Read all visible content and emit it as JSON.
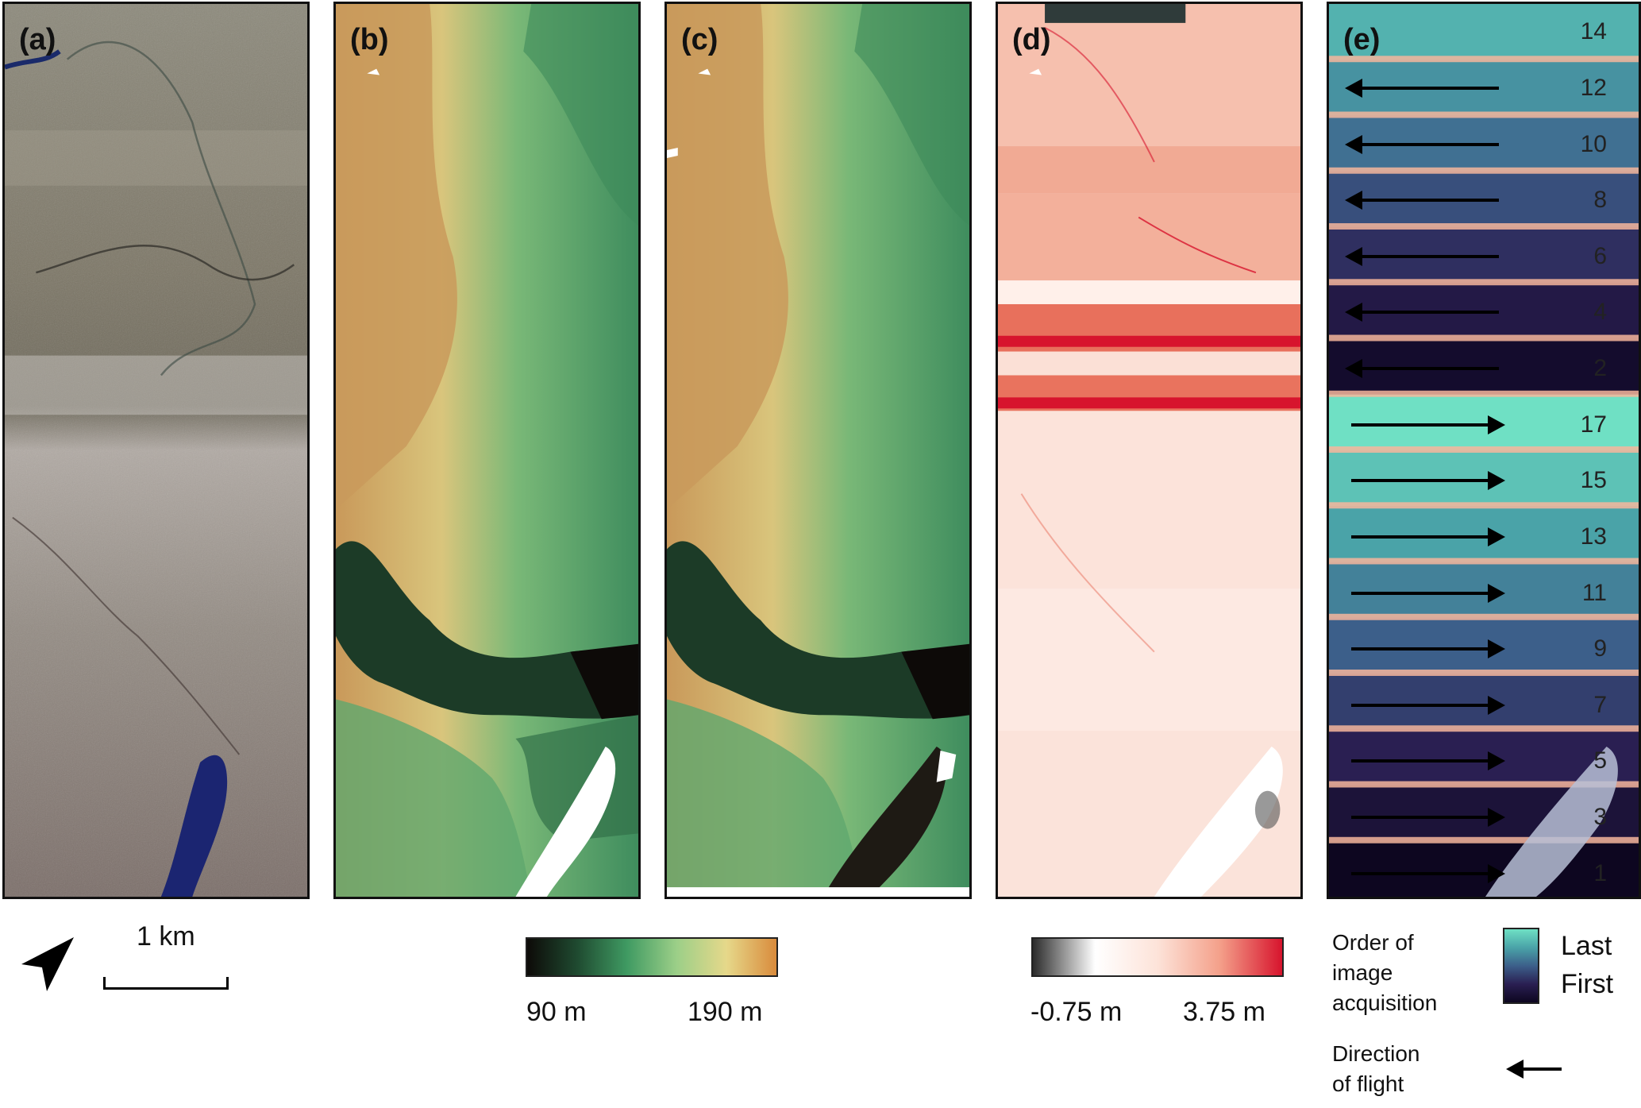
{
  "panels": {
    "a": {
      "label": "(a)"
    },
    "b": {
      "label": "(b)"
    },
    "c": {
      "label": "(c)"
    },
    "d": {
      "label": "(d)"
    },
    "e": {
      "label": "(e)"
    }
  },
  "strips": [
    {
      "num": "14",
      "arrow": "none"
    },
    {
      "num": "12",
      "arrow": "left"
    },
    {
      "num": "10",
      "arrow": "left"
    },
    {
      "num": "8",
      "arrow": "left"
    },
    {
      "num": "6",
      "arrow": "left"
    },
    {
      "num": "4",
      "arrow": "left"
    },
    {
      "num": "2",
      "arrow": "left"
    },
    {
      "num": "17",
      "arrow": "right"
    },
    {
      "num": "15",
      "arrow": "right"
    },
    {
      "num": "13",
      "arrow": "right"
    },
    {
      "num": "11",
      "arrow": "right"
    },
    {
      "num": "9",
      "arrow": "right"
    },
    {
      "num": "7",
      "arrow": "right"
    },
    {
      "num": "5",
      "arrow": "right"
    },
    {
      "num": "3",
      "arrow": "right"
    },
    {
      "num": "1",
      "arrow": "right"
    }
  ],
  "scale_bar": {
    "label": "1 km"
  },
  "elevation_colorbar": {
    "min_label": "90 m",
    "max_label": "190 m",
    "colors": [
      "#0d0a08",
      "#1f4a30",
      "#3f9a62",
      "#9ccf88",
      "#e6d88a",
      "#d98b3c"
    ]
  },
  "difference_colorbar": {
    "min_label": "-0.75 m",
    "max_label": "3.75 m",
    "colors": [
      "#2b2b2b",
      "#ffffff",
      "#fde3d9",
      "#f4a08a",
      "#d7142d"
    ]
  },
  "order_legend": {
    "title_lines": [
      "Order of",
      "image",
      "acquisition"
    ],
    "top_label": "Last",
    "bottom_label": "First",
    "colors": [
      "#6fe0c4",
      "#4aa3a8",
      "#3c5f8a",
      "#2a1f52",
      "#0d0620"
    ]
  },
  "direction_legend": {
    "title_lines": [
      "Direction",
      "of flight"
    ],
    "icon": "left-arrow-icon"
  },
  "north_arrow": {
    "icon": "north-arrow-icon"
  }
}
